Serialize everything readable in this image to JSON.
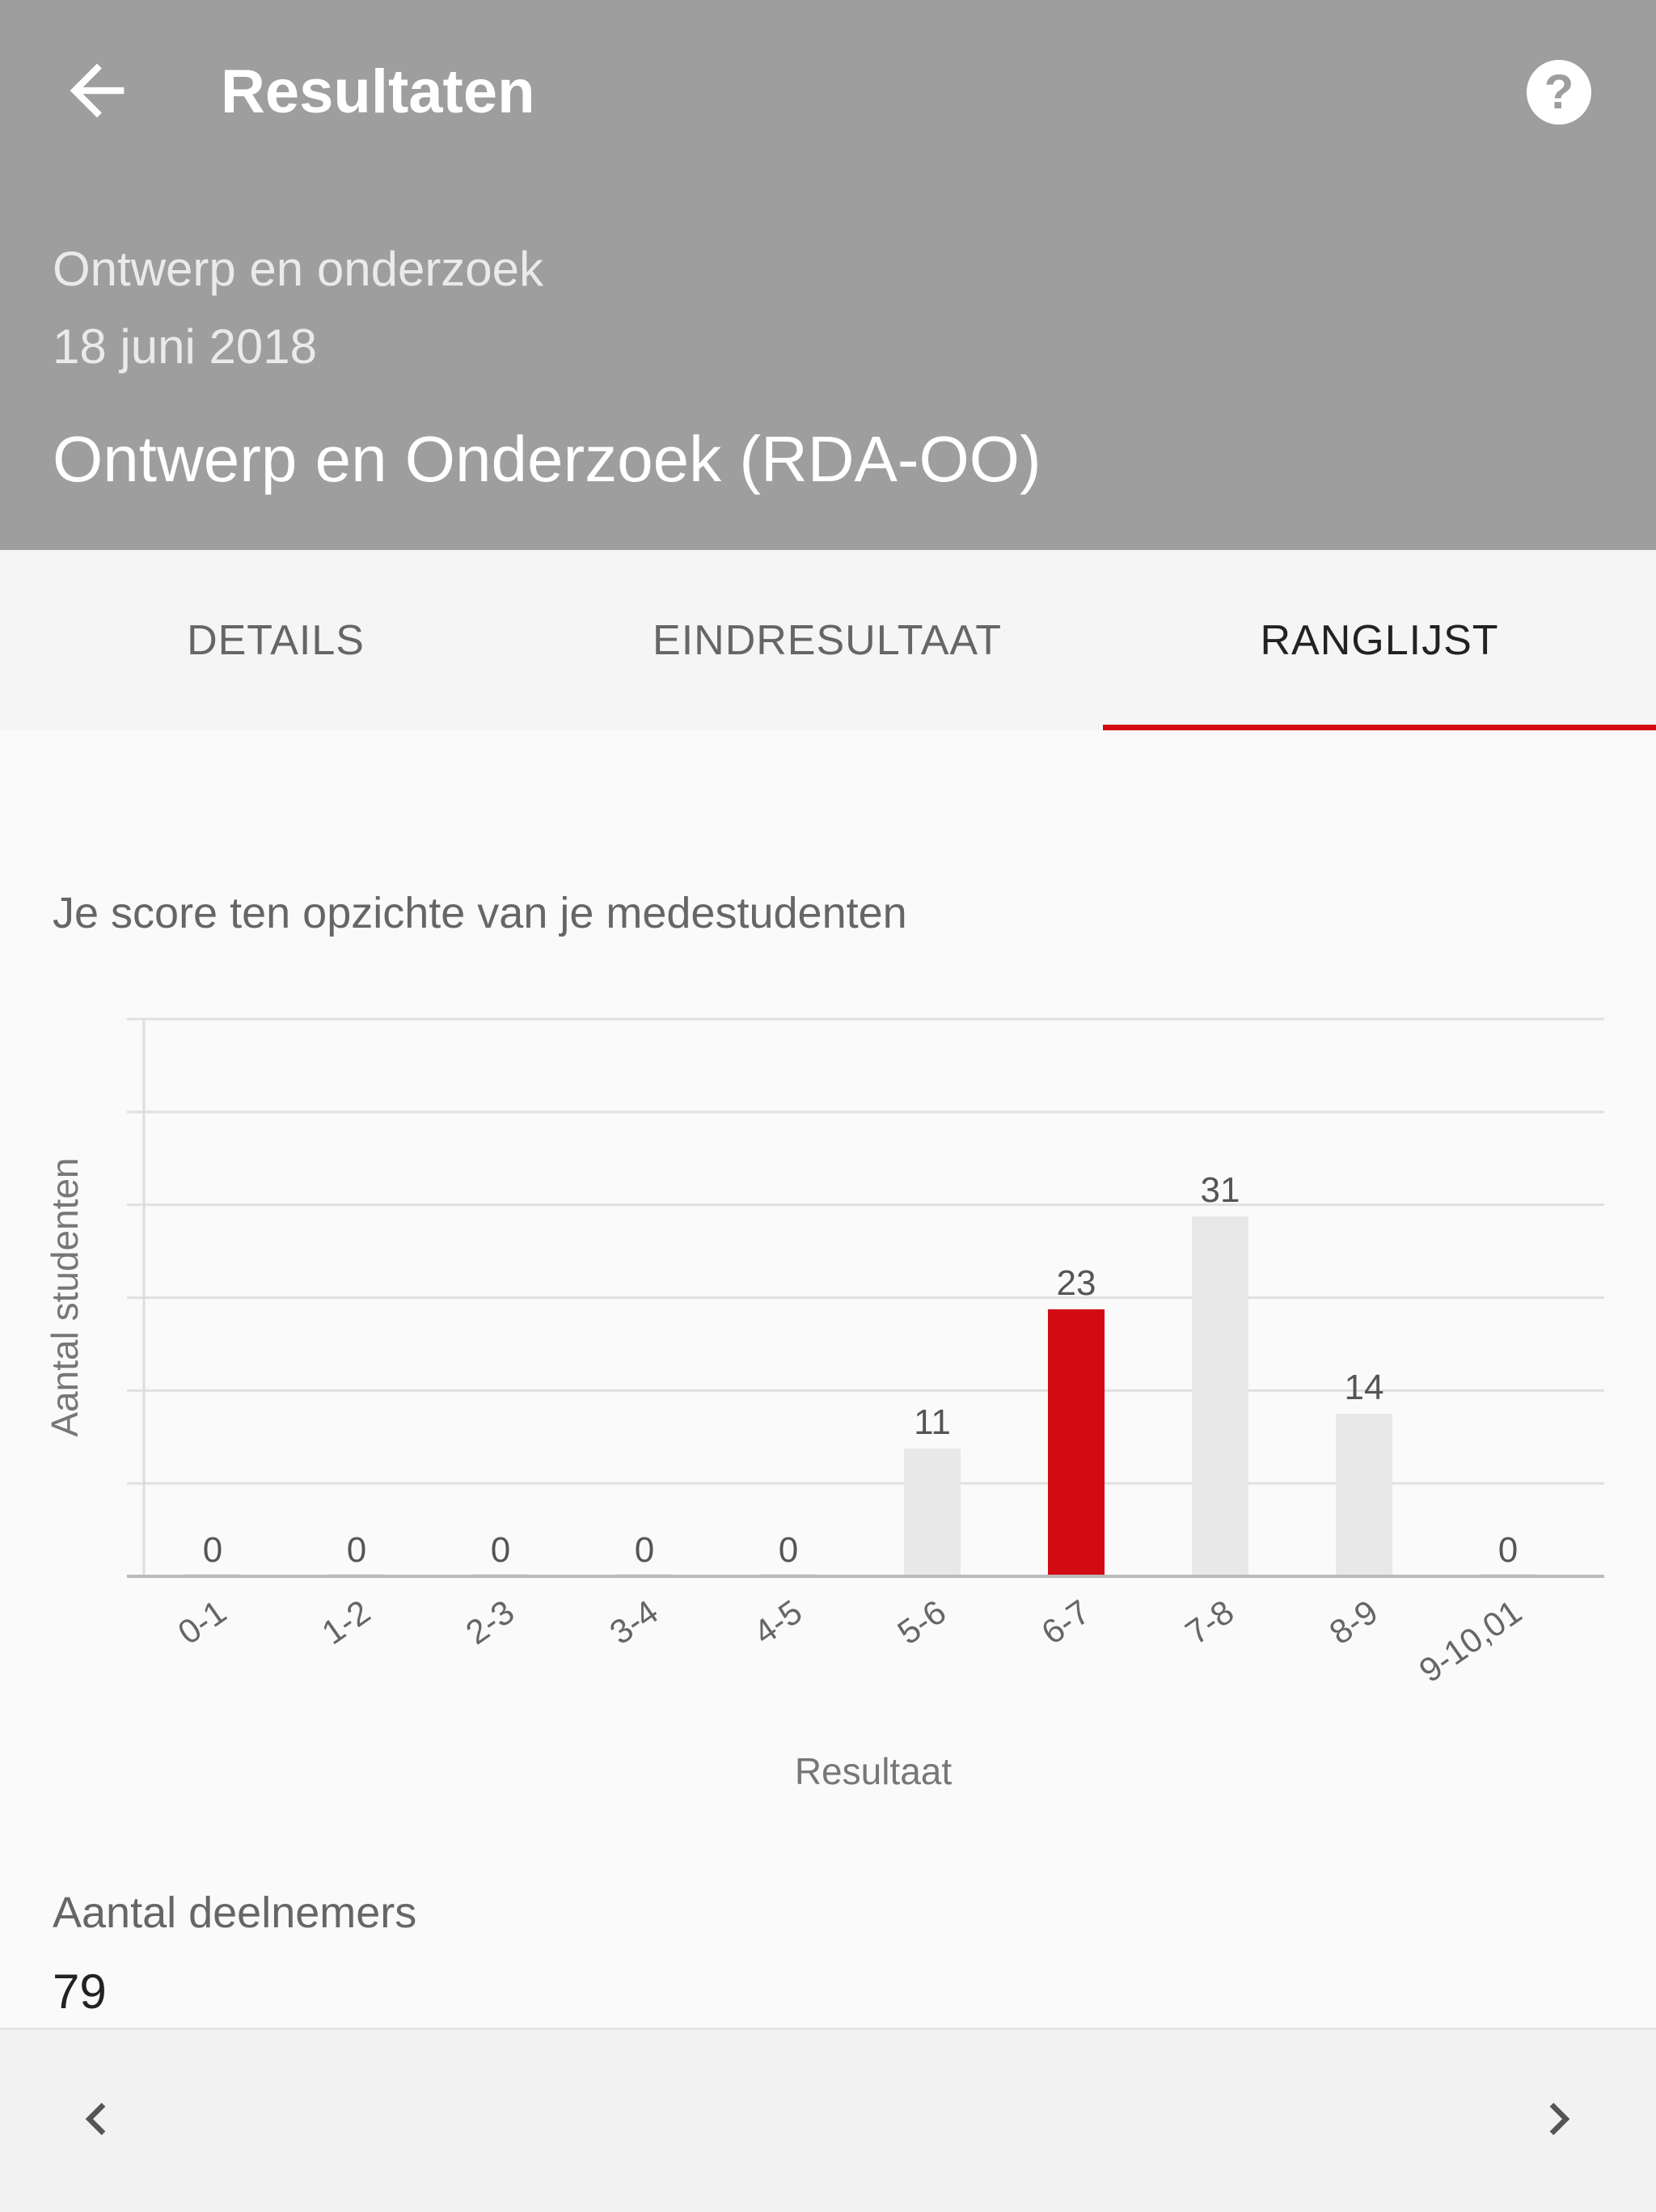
{
  "toolbar": {
    "title": "Resultaten",
    "back_icon": "arrow-left-icon",
    "help_icon": "help-circle-icon"
  },
  "header": {
    "course_subtitle": "Ontwerp en onderzoek",
    "date": "18 juni 2018",
    "course_title": "Ontwerp en Onderzoek (RDA-OO)"
  },
  "tabs": [
    {
      "label": "DETAILS"
    },
    {
      "label": "EINDRESULTAAT"
    },
    {
      "label": "RANGLIJST",
      "active": true
    }
  ],
  "section_title": "Je score ten opzichte van je medestudenten",
  "colors": {
    "header": "#9e9e9e",
    "accent": "#d20a11",
    "bar": "#e8e8e8"
  },
  "chart_data": {
    "type": "bar",
    "categories": [
      "0-1",
      "1-2",
      "2-3",
      "3-4",
      "4-5",
      "5-6",
      "6-7",
      "7-8",
      "8-9",
      "9-10,01"
    ],
    "values": [
      0,
      0,
      0,
      0,
      0,
      11,
      23,
      31,
      14,
      0
    ],
    "highlight_index": 6,
    "xlabel": "Resultaat",
    "ylabel": "Aantal studenten",
    "ylim": [
      0,
      48
    ],
    "grid": true
  },
  "participants": {
    "label": "Aantal deelnemers",
    "value": "79"
  },
  "bottom_nav": {
    "prev_icon": "chevron-left-icon",
    "next_icon": "chevron-right-icon"
  }
}
